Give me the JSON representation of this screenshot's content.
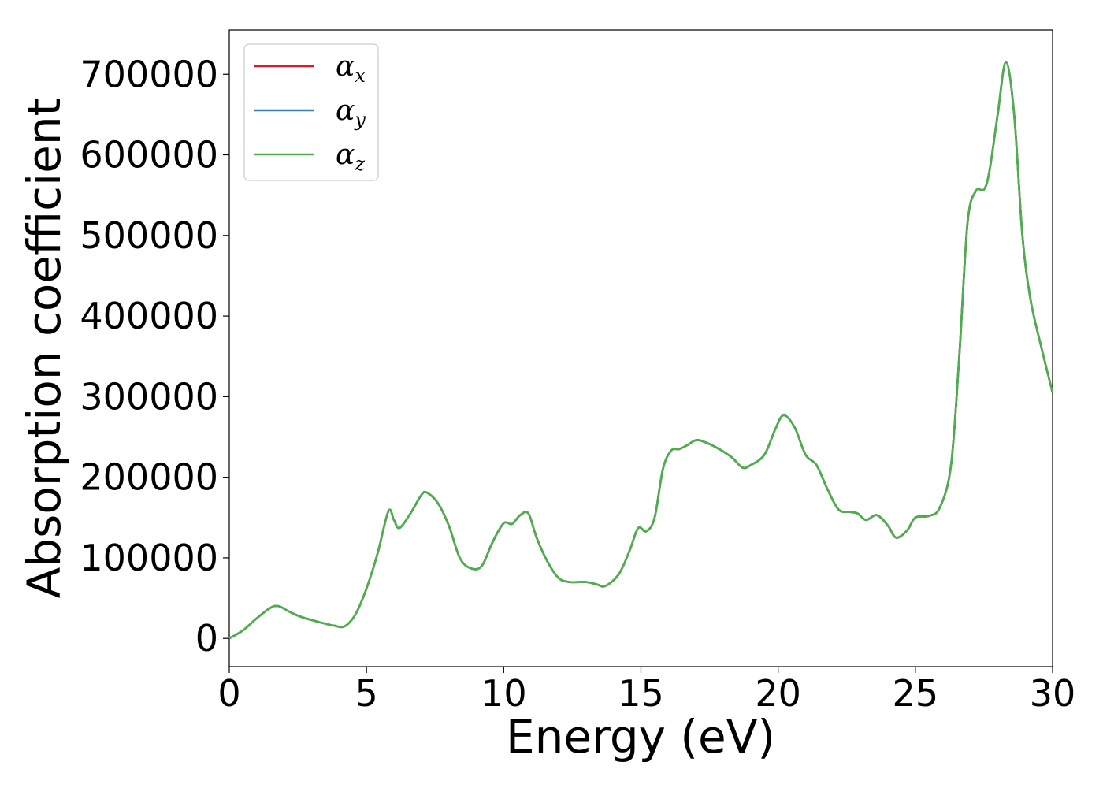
{
  "chart_data": {
    "type": "line",
    "title": "",
    "xlabel": "Energy (eV)",
    "ylabel": "Absorption coefficient",
    "xlim": [
      0,
      30
    ],
    "ylim": [
      -35000,
      755000
    ],
    "xticks": [
      0,
      5,
      10,
      15,
      20,
      25,
      30
    ],
    "yticks": [
      0,
      100000,
      200000,
      300000,
      400000,
      500000,
      600000,
      700000
    ],
    "grid": false,
    "legend_position": "top-left",
    "colors": {
      "alpha_x": "#e41a1c",
      "alpha_y": "#377eb8",
      "alpha_z": "#4daf4a"
    },
    "x": [
      0,
      0.5,
      1.0,
      1.5,
      1.8,
      2.2,
      2.6,
      3.2,
      3.8,
      4.2,
      4.6,
      5.0,
      5.4,
      5.8,
      6.0,
      6.2,
      6.6,
      7.0,
      7.2,
      7.6,
      8.0,
      8.4,
      8.8,
      9.2,
      9.6,
      10.0,
      10.3,
      10.6,
      10.9,
      11.2,
      11.6,
      12.0,
      12.4,
      13.0,
      13.4,
      13.7,
      14.2,
      14.6,
      14.9,
      15.2,
      15.5,
      15.8,
      16.1,
      16.4,
      16.7,
      17.0,
      17.3,
      17.8,
      18.3,
      18.7,
      19.0,
      19.5,
      19.9,
      20.2,
      20.6,
      21.0,
      21.4,
      21.8,
      22.2,
      22.6,
      22.9,
      23.2,
      23.6,
      24.0,
      24.3,
      24.7,
      25.0,
      25.5,
      25.9,
      26.3,
      26.6,
      26.9,
      27.2,
      27.5,
      27.7,
      28.0,
      28.3,
      28.6,
      28.9,
      29.2,
      29.6,
      30.0
    ],
    "series": [
      {
        "name": "αx",
        "values": [
          0,
          10000,
          25000,
          38000,
          40000,
          33000,
          27000,
          21000,
          16000,
          15000,
          30000,
          62000,
          105000,
          158000,
          147000,
          137000,
          155000,
          178000,
          181000,
          168000,
          140000,
          100000,
          87000,
          90000,
          120000,
          143000,
          142000,
          153000,
          155000,
          125000,
          95000,
          75000,
          70000,
          70000,
          67000,
          65000,
          80000,
          110000,
          137000,
          133000,
          150000,
          210000,
          233000,
          235000,
          240000,
          246000,
          244000,
          236000,
          225000,
          212000,
          215000,
          228000,
          260000,
          277000,
          262000,
          228000,
          215000,
          185000,
          160000,
          157000,
          155000,
          147000,
          153000,
          140000,
          125000,
          134000,
          150000,
          152000,
          163000,
          215000,
          350000,
          515000,
          555000,
          557000,
          580000,
          650000,
          715000,
          650000,
          500000,
          420000,
          360000,
          305000
        ]
      },
      {
        "name": "αy",
        "values": [
          0,
          10000,
          25000,
          38000,
          40000,
          33000,
          27000,
          21000,
          16000,
          15000,
          30000,
          62000,
          105000,
          158000,
          147000,
          137000,
          155000,
          178000,
          181000,
          168000,
          140000,
          100000,
          87000,
          90000,
          120000,
          143000,
          142000,
          153000,
          155000,
          125000,
          95000,
          75000,
          70000,
          70000,
          67000,
          65000,
          80000,
          110000,
          137000,
          133000,
          150000,
          210000,
          233000,
          235000,
          240000,
          246000,
          244000,
          236000,
          225000,
          212000,
          215000,
          228000,
          260000,
          277000,
          262000,
          228000,
          215000,
          185000,
          160000,
          157000,
          155000,
          147000,
          153000,
          140000,
          125000,
          134000,
          150000,
          152000,
          163000,
          215000,
          350000,
          515000,
          555000,
          557000,
          580000,
          650000,
          715000,
          650000,
          500000,
          420000,
          360000,
          305000
        ]
      },
      {
        "name": "αz",
        "values": [
          0,
          10000,
          25000,
          38000,
          40000,
          33000,
          27000,
          21000,
          16000,
          15000,
          30000,
          62000,
          105000,
          158000,
          147000,
          137000,
          155000,
          178000,
          181000,
          168000,
          140000,
          100000,
          87000,
          90000,
          120000,
          143000,
          142000,
          153000,
          155000,
          125000,
          95000,
          75000,
          70000,
          70000,
          67000,
          65000,
          80000,
          110000,
          137000,
          133000,
          150000,
          210000,
          233000,
          235000,
          240000,
          246000,
          244000,
          236000,
          225000,
          212000,
          215000,
          228000,
          260000,
          277000,
          262000,
          228000,
          215000,
          185000,
          160000,
          157000,
          155000,
          147000,
          153000,
          140000,
          125000,
          134000,
          150000,
          152000,
          163000,
          215000,
          350000,
          515000,
          555000,
          557000,
          580000,
          650000,
          715000,
          650000,
          500000,
          420000,
          360000,
          305000
        ]
      }
    ],
    "legend": [
      {
        "symbol": "α",
        "subscript": "x"
      },
      {
        "symbol": "α",
        "subscript": "y"
      },
      {
        "symbol": "α",
        "subscript": "z"
      }
    ]
  }
}
